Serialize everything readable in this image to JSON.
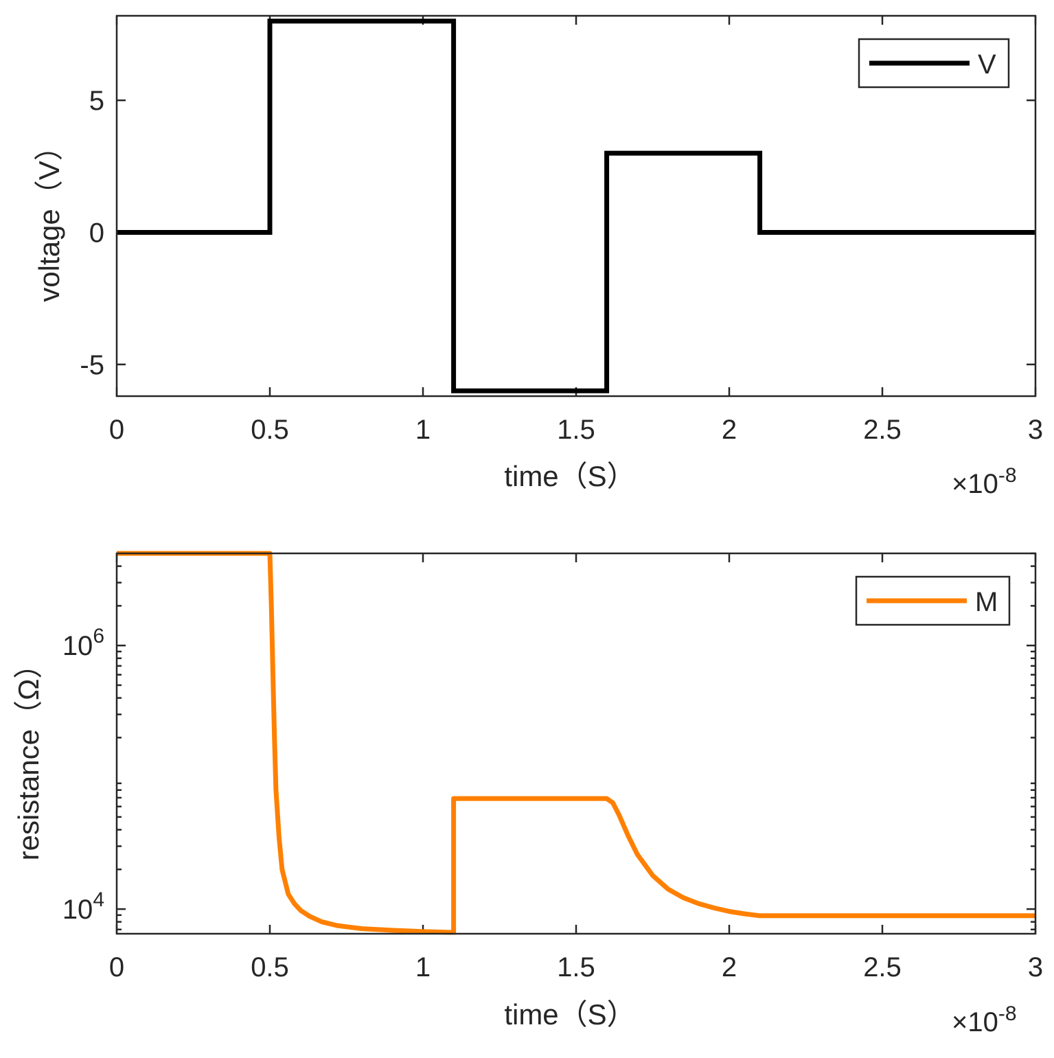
{
  "chart_data": [
    {
      "type": "line",
      "title": "",
      "xlabel": "time（S）",
      "ylabel": "voltage（V）",
      "x_exponent_base": "×10",
      "x_exponent_power": "-8",
      "xlim": [
        0,
        3
      ],
      "ylim": [
        -6.2,
        8.2
      ],
      "yscale": "linear",
      "xticks": [
        0,
        0.5,
        1,
        1.5,
        2,
        2.5,
        3
      ],
      "xtick_labels": [
        "0",
        "0.5",
        "1",
        "1.5",
        "2",
        "2.5",
        "3"
      ],
      "yticks": [
        -5,
        0,
        5
      ],
      "ytick_labels": [
        "-5",
        "0",
        "5"
      ],
      "grid": false,
      "legend_position": "top-right",
      "series": [
        {
          "name": "V",
          "color": "#000000",
          "x": [
            0,
            0.5,
            0.5,
            1.1,
            1.1,
            1.6,
            1.6,
            2.1,
            2.1,
            3.0
          ],
          "y": [
            0,
            0,
            8,
            8,
            -6,
            -6,
            3,
            3,
            0,
            0
          ]
        }
      ]
    },
    {
      "type": "line",
      "title": "",
      "xlabel": "time（S）",
      "ylabel": "resistance（Ω）",
      "x_exponent_base": "×10",
      "x_exponent_power": "-8",
      "xlim": [
        0,
        3
      ],
      "ylim": [
        6500,
        5000000
      ],
      "yscale": "log",
      "xticks": [
        0,
        0.5,
        1,
        1.5,
        2,
        2.5,
        3
      ],
      "xtick_labels": [
        "0",
        "0.5",
        "1",
        "1.5",
        "2",
        "2.5",
        "3"
      ],
      "yticks": [
        10000,
        1000000
      ],
      "ytick_labels": [
        {
          "base": "10",
          "exp": "4"
        },
        {
          "base": "10",
          "exp": "6"
        }
      ],
      "grid": false,
      "legend_position": "top-right",
      "series": [
        {
          "name": "M",
          "color": "#FF8000",
          "x": [
            0,
            0.5,
            0.505,
            0.51,
            0.515,
            0.52,
            0.53,
            0.54,
            0.56,
            0.58,
            0.6,
            0.63,
            0.67,
            0.72,
            0.8,
            0.9,
            1.0,
            1.1,
            1.1,
            1.2,
            1.4,
            1.6,
            1.62,
            1.64,
            1.67,
            1.7,
            1.75,
            1.8,
            1.85,
            1.9,
            1.95,
            2.0,
            2.05,
            2.1,
            2.5,
            3.0
          ],
          "y": [
            5000000,
            5000000,
            2000000,
            600000,
            200000,
            80000,
            35000,
            20000,
            13000,
            11000,
            9800,
            8800,
            8000,
            7500,
            7100,
            6900,
            6750,
            6650,
            69000,
            69000,
            69000,
            69000,
            64000,
            52000,
            36000,
            26000,
            18000,
            14200,
            12200,
            11000,
            10200,
            9600,
            9200,
            8900,
            8900,
            8900
          ]
        }
      ]
    }
  ]
}
